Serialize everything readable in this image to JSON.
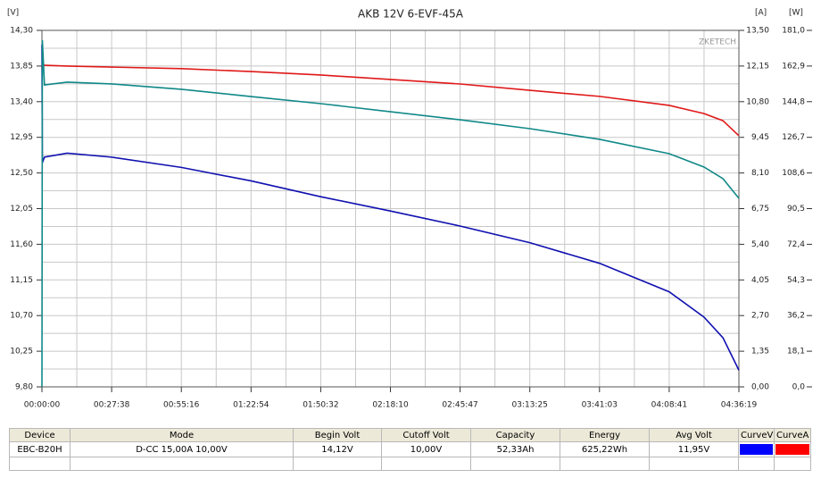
{
  "chart_data": {
    "type": "line",
    "title": "AKB 12V 6-EVF-45A",
    "watermark": "ZKETECH",
    "y_unit": "[V]",
    "y2_unit": "[A]",
    "y3_unit": "[W]",
    "x": [
      0,
      10,
      60,
      600,
      1658,
      3316,
      4974,
      6632,
      8290,
      9947,
      11605,
      13263,
      14921,
      15750,
      16200,
      16579
    ],
    "xlim": [
      0,
      16579
    ],
    "xticks": [
      {
        "value": 0,
        "label": "00:00:00"
      },
      {
        "value": 1658,
        "label": "00:27:38"
      },
      {
        "value": 3316,
        "label": "00:55:16"
      },
      {
        "value": 4974,
        "label": "01:22:54"
      },
      {
        "value": 6632,
        "label": "01:50:32"
      },
      {
        "value": 8290,
        "label": "02:18:10"
      },
      {
        "value": 9947,
        "label": "02:45:47"
      },
      {
        "value": 11605,
        "label": "03:13:25"
      },
      {
        "value": 13263,
        "label": "03:41:03"
      },
      {
        "value": 14921,
        "label": "04:08:41"
      },
      {
        "value": 16579,
        "label": "04:36:19"
      }
    ],
    "ylim": [
      9.8,
      14.3
    ],
    "yticks": [
      {
        "value": 9.8,
        "label": "9,80"
      },
      {
        "value": 10.25,
        "label": "10,25"
      },
      {
        "value": 10.7,
        "label": "10,70"
      },
      {
        "value": 11.15,
        "label": "11,15"
      },
      {
        "value": 11.6,
        "label": "11,60"
      },
      {
        "value": 12.05,
        "label": "12,05"
      },
      {
        "value": 12.5,
        "label": "12,50"
      },
      {
        "value": 12.95,
        "label": "12,95"
      },
      {
        "value": 13.4,
        "label": "13,40"
      },
      {
        "value": 13.85,
        "label": "13,85"
      },
      {
        "value": 14.3,
        "label": "14,30"
      }
    ],
    "y2lim": [
      0,
      13.5
    ],
    "y2ticks": [
      {
        "value": 0,
        "label": "0,00"
      },
      {
        "value": 1.35,
        "label": "1,35"
      },
      {
        "value": 2.7,
        "label": "2,70"
      },
      {
        "value": 4.05,
        "label": "4,05"
      },
      {
        "value": 5.4,
        "label": "5,40"
      },
      {
        "value": 6.75,
        "label": "6,75"
      },
      {
        "value": 8.1,
        "label": "8,10"
      },
      {
        "value": 9.45,
        "label": "9,45"
      },
      {
        "value": 10.8,
        "label": "10,80"
      },
      {
        "value": 12.15,
        "label": "12,15"
      },
      {
        "value": 13.5,
        "label": "13,50"
      }
    ],
    "y3lim": [
      0,
      181
    ],
    "y3ticks": [
      {
        "value": 0,
        "label": "0,0"
      },
      {
        "value": 18.1,
        "label": "18,1"
      },
      {
        "value": 36.2,
        "label": "36,2"
      },
      {
        "value": 54.3,
        "label": "54,3"
      },
      {
        "value": 72.4,
        "label": "72,4"
      },
      {
        "value": 90.5,
        "label": "90,5"
      },
      {
        "value": 108.6,
        "label": "108,6"
      },
      {
        "value": 126.7,
        "label": "126,7"
      },
      {
        "value": 144.8,
        "label": "144,8"
      },
      {
        "value": 162.9,
        "label": "162,9"
      },
      {
        "value": 181,
        "label": "181,0"
      }
    ],
    "grid": true,
    "minor_grid": true,
    "series": [
      {
        "name": "CurveV",
        "color": "#1010b0",
        "swatch": "#0000ff",
        "axis": "y",
        "values": [
          14.12,
          12.63,
          12.7,
          12.75,
          12.7,
          12.57,
          12.4,
          12.2,
          12.02,
          11.83,
          11.62,
          11.36,
          11.0,
          10.68,
          10.42,
          10.01
        ]
      },
      {
        "name": "CurveA",
        "color": "#e01818",
        "swatch": "#ff0000",
        "axis": "y2",
        "values": [
          12.05,
          12.18,
          12.18,
          12.15,
          12.11,
          12.05,
          11.94,
          11.81,
          11.64,
          11.47,
          11.23,
          11.0,
          10.66,
          10.35,
          10.08,
          9.51
        ]
      },
      {
        "color": "#108888",
        "axis": "y3",
        "values": [
          0,
          176,
          153.3,
          154.7,
          153.8,
          151.1,
          147.4,
          143.8,
          139.7,
          135.6,
          131.1,
          125.7,
          118.4,
          111.6,
          105.7,
          95.7
        ]
      }
    ]
  },
  "table": {
    "header": [
      "Device",
      "Mode",
      "Begin Volt",
      "Cutoff Volt",
      "Capacity",
      "Energy",
      "Avg Volt"
    ],
    "rows": [
      [
        "EBC-B20H",
        "D-CC 15,00A  10,00V",
        "14,12V",
        "10,00V",
        "52,33Ah",
        "625,22Wh",
        "11,95V"
      ]
    ]
  }
}
